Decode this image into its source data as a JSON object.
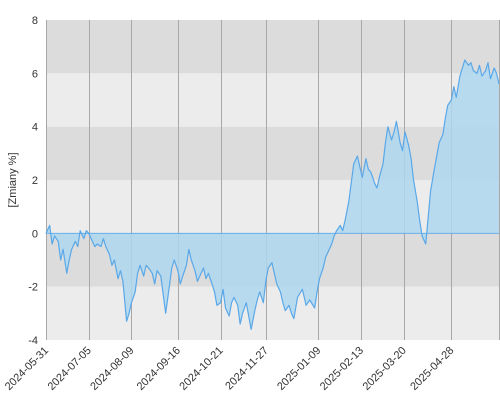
{
  "chart_data": {
    "type": "area",
    "ylabel": "[Zmiany %]",
    "ylim": [
      -4,
      8
    ],
    "yticks": [
      -4,
      -2,
      0,
      2,
      4,
      6,
      8
    ],
    "xlim": [
      "2024-05-31",
      "2025-06-06"
    ],
    "xticks": [
      "2024-05-31",
      "2024-07-05",
      "2024-08-09",
      "2024-09-16",
      "2024-10-21",
      "2024-11-27",
      "2025-01-09",
      "2025-02-13",
      "2025-03-20",
      "2025-04-28"
    ],
    "grid": true,
    "colors": {
      "band_dark": "#dcdcdc",
      "band_light": "#ececec",
      "gridline": "#a8a8a8",
      "line": "#5aa8e8",
      "fill": "#aed7f0",
      "zero_line": "#5aa8e8"
    },
    "series": [
      {
        "points": [
          [
            "2024-05-31",
            0.0
          ],
          [
            "2024-06-03",
            0.3
          ],
          [
            "2024-06-05",
            -0.4
          ],
          [
            "2024-06-07",
            -0.1
          ],
          [
            "2024-06-10",
            -0.3
          ],
          [
            "2024-06-12",
            -1.0
          ],
          [
            "2024-06-14",
            -0.6
          ],
          [
            "2024-06-17",
            -1.5
          ],
          [
            "2024-06-19",
            -1.0
          ],
          [
            "2024-06-21",
            -0.6
          ],
          [
            "2024-06-24",
            -0.3
          ],
          [
            "2024-06-26",
            -0.5
          ],
          [
            "2024-06-28",
            0.1
          ],
          [
            "2024-07-01",
            -0.2
          ],
          [
            "2024-07-03",
            0.1
          ],
          [
            "2024-07-05",
            0.0
          ],
          [
            "2024-07-08",
            -0.3
          ],
          [
            "2024-07-10",
            -0.5
          ],
          [
            "2024-07-12",
            -0.4
          ],
          [
            "2024-07-15",
            -0.5
          ],
          [
            "2024-07-17",
            -0.2
          ],
          [
            "2024-07-19",
            -0.5
          ],
          [
            "2024-07-22",
            -0.8
          ],
          [
            "2024-07-24",
            -1.2
          ],
          [
            "2024-07-26",
            -1.0
          ],
          [
            "2024-07-29",
            -1.7
          ],
          [
            "2024-07-31",
            -1.4
          ],
          [
            "2024-08-02",
            -1.8
          ],
          [
            "2024-08-05",
            -3.3
          ],
          [
            "2024-08-07",
            -3.0
          ],
          [
            "2024-08-09",
            -2.6
          ],
          [
            "2024-08-12",
            -2.2
          ],
          [
            "2024-08-14",
            -1.5
          ],
          [
            "2024-08-16",
            -1.2
          ],
          [
            "2024-08-19",
            -1.6
          ],
          [
            "2024-08-21",
            -1.2
          ],
          [
            "2024-08-23",
            -1.3
          ],
          [
            "2024-08-26",
            -1.5
          ],
          [
            "2024-08-28",
            -1.9
          ],
          [
            "2024-08-30",
            -1.4
          ],
          [
            "2024-09-02",
            -1.6
          ],
          [
            "2024-09-04",
            -2.3
          ],
          [
            "2024-09-06",
            -3.0
          ],
          [
            "2024-09-09",
            -2.0
          ],
          [
            "2024-09-11",
            -1.3
          ],
          [
            "2024-09-13",
            -1.0
          ],
          [
            "2024-09-16",
            -1.4
          ],
          [
            "2024-09-18",
            -1.9
          ],
          [
            "2024-09-20",
            -1.6
          ],
          [
            "2024-09-23",
            -1.2
          ],
          [
            "2024-09-25",
            -0.6
          ],
          [
            "2024-09-27",
            -1.0
          ],
          [
            "2024-09-30",
            -1.4
          ],
          [
            "2024-10-02",
            -1.8
          ],
          [
            "2024-10-04",
            -1.6
          ],
          [
            "2024-10-07",
            -1.3
          ],
          [
            "2024-10-09",
            -1.7
          ],
          [
            "2024-10-11",
            -1.5
          ],
          [
            "2024-10-14",
            -1.9
          ],
          [
            "2024-10-16",
            -2.2
          ],
          [
            "2024-10-18",
            -2.7
          ],
          [
            "2024-10-21",
            -2.6
          ],
          [
            "2024-10-23",
            -2.1
          ],
          [
            "2024-10-25",
            -2.8
          ],
          [
            "2024-10-28",
            -3.1
          ],
          [
            "2024-10-30",
            -2.6
          ],
          [
            "2024-11-01",
            -2.4
          ],
          [
            "2024-11-04",
            -2.7
          ],
          [
            "2024-11-06",
            -3.4
          ],
          [
            "2024-11-08",
            -3.0
          ],
          [
            "2024-11-11",
            -2.6
          ],
          [
            "2024-11-13",
            -3.1
          ],
          [
            "2024-11-15",
            -3.6
          ],
          [
            "2024-11-18",
            -2.9
          ],
          [
            "2024-11-20",
            -2.5
          ],
          [
            "2024-11-22",
            -2.2
          ],
          [
            "2024-11-25",
            -2.6
          ],
          [
            "2024-11-27",
            -1.8
          ],
          [
            "2024-11-29",
            -1.3
          ],
          [
            "2024-12-02",
            -1.1
          ],
          [
            "2024-12-04",
            -1.5
          ],
          [
            "2024-12-06",
            -1.9
          ],
          [
            "2024-12-09",
            -2.2
          ],
          [
            "2024-12-11",
            -2.6
          ],
          [
            "2024-12-13",
            -2.9
          ],
          [
            "2024-12-16",
            -2.7
          ],
          [
            "2024-12-18",
            -3.0
          ],
          [
            "2024-12-20",
            -3.2
          ],
          [
            "2024-12-23",
            -2.4
          ],
          [
            "2024-12-27",
            -2.1
          ],
          [
            "2024-12-30",
            -2.7
          ],
          [
            "2025-01-02",
            -2.5
          ],
          [
            "2025-01-06",
            -2.8
          ],
          [
            "2025-01-08",
            -2.2
          ],
          [
            "2025-01-10",
            -1.7
          ],
          [
            "2025-01-13",
            -1.3
          ],
          [
            "2025-01-15",
            -0.9
          ],
          [
            "2025-01-17",
            -0.7
          ],
          [
            "2025-01-20",
            -0.4
          ],
          [
            "2025-01-22",
            -0.1
          ],
          [
            "2025-01-24",
            0.1
          ],
          [
            "2025-01-27",
            0.3
          ],
          [
            "2025-01-29",
            0.1
          ],
          [
            "2025-01-31",
            0.5
          ],
          [
            "2025-02-03",
            1.2
          ],
          [
            "2025-02-05",
            1.9
          ],
          [
            "2025-02-07",
            2.6
          ],
          [
            "2025-02-10",
            2.9
          ],
          [
            "2025-02-12",
            2.5
          ],
          [
            "2025-02-14",
            2.1
          ],
          [
            "2025-02-17",
            2.8
          ],
          [
            "2025-02-19",
            2.4
          ],
          [
            "2025-02-21",
            2.3
          ],
          [
            "2025-02-24",
            1.9
          ],
          [
            "2025-02-26",
            1.7
          ],
          [
            "2025-02-28",
            2.1
          ],
          [
            "2025-03-03",
            2.6
          ],
          [
            "2025-03-05",
            3.4
          ],
          [
            "2025-03-07",
            4.0
          ],
          [
            "2025-03-10",
            3.5
          ],
          [
            "2025-03-12",
            3.8
          ],
          [
            "2025-03-14",
            4.2
          ],
          [
            "2025-03-17",
            3.4
          ],
          [
            "2025-03-19",
            3.1
          ],
          [
            "2025-03-21",
            3.8
          ],
          [
            "2025-03-24",
            3.3
          ],
          [
            "2025-03-26",
            2.8
          ],
          [
            "2025-03-28",
            2.0
          ],
          [
            "2025-03-31",
            1.2
          ],
          [
            "2025-04-02",
            0.5
          ],
          [
            "2025-04-04",
            -0.1
          ],
          [
            "2025-04-07",
            -0.4
          ],
          [
            "2025-04-09",
            0.6
          ],
          [
            "2025-04-11",
            1.6
          ],
          [
            "2025-04-14",
            2.4
          ],
          [
            "2025-04-16",
            2.9
          ],
          [
            "2025-04-18",
            3.4
          ],
          [
            "2025-04-21",
            3.7
          ],
          [
            "2025-04-23",
            4.3
          ],
          [
            "2025-04-25",
            4.8
          ],
          [
            "2025-04-28",
            5.0
          ],
          [
            "2025-04-30",
            5.5
          ],
          [
            "2025-05-02",
            5.1
          ],
          [
            "2025-05-05",
            5.9
          ],
          [
            "2025-05-07",
            6.2
          ],
          [
            "2025-05-09",
            6.5
          ],
          [
            "2025-05-12",
            6.3
          ],
          [
            "2025-05-14",
            6.4
          ],
          [
            "2025-05-16",
            6.1
          ],
          [
            "2025-05-19",
            6.0
          ],
          [
            "2025-05-21",
            6.3
          ],
          [
            "2025-05-23",
            5.9
          ],
          [
            "2025-05-26",
            6.1
          ],
          [
            "2025-05-28",
            6.4
          ],
          [
            "2025-05-30",
            5.8
          ],
          [
            "2025-06-02",
            6.2
          ],
          [
            "2025-06-04",
            6.0
          ],
          [
            "2025-06-06",
            5.6
          ]
        ]
      }
    ]
  }
}
